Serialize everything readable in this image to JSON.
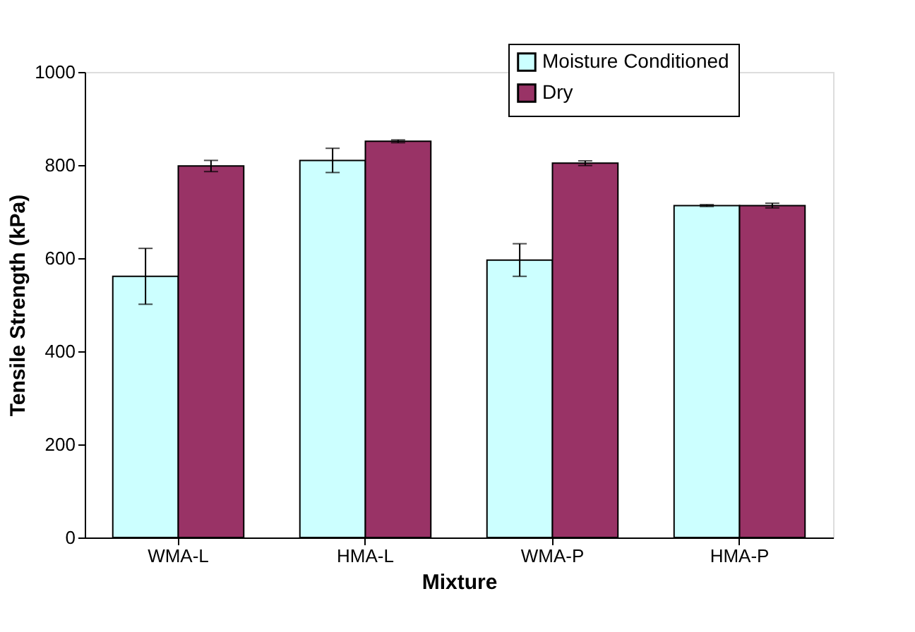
{
  "chart_data": {
    "type": "bar",
    "xlabel": "Mixture",
    "ylabel": "Tensile Strength (kPa)",
    "categories": [
      "WMA-L",
      "HMA-L",
      "WMA-P",
      "HMA-P"
    ],
    "series": [
      {
        "name": "Moisture Conditioned",
        "color": "#ccffff",
        "values": [
          561,
          810,
          596,
          713
        ],
        "errors": [
          60,
          26,
          35,
          2
        ]
      },
      {
        "name": "Dry",
        "color": "#993366",
        "values": [
          798,
          851,
          804,
          713
        ],
        "errors": [
          12,
          3,
          5,
          5
        ]
      }
    ],
    "ylim": [
      0,
      1000
    ],
    "yticks": [
      0,
      200,
      400,
      600,
      800,
      {
        "value": 1000,
        "label": "1000"
      }
    ],
    "grid": false,
    "legend": "top right"
  }
}
